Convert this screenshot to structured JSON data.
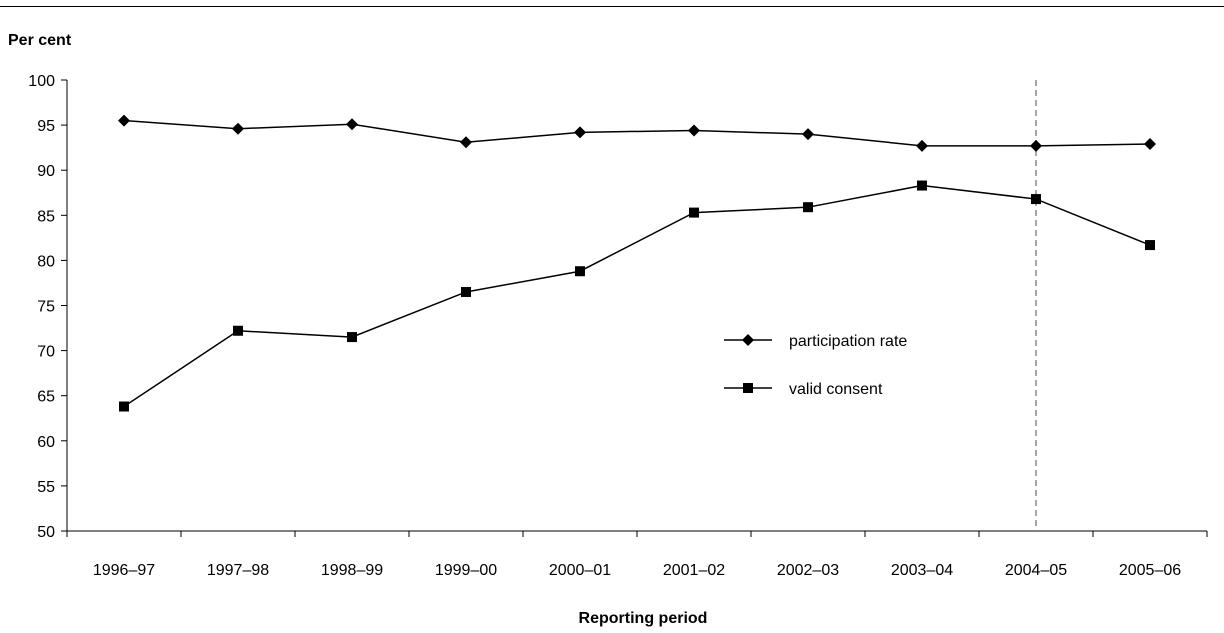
{
  "chart_data": {
    "type": "line",
    "title": "",
    "xlabel": "Reporting period",
    "ylabel": "Per cent",
    "categories": [
      "1996–97",
      "1997–98",
      "1998–99",
      "1999–00",
      "2000–01",
      "2001–02",
      "2002–03",
      "2003–04",
      "2004–05",
      "2005–06"
    ],
    "ylim": [
      50,
      100
    ],
    "yticks": [
      50,
      55,
      60,
      65,
      70,
      75,
      80,
      85,
      90,
      95,
      100
    ],
    "grid": false,
    "legend_position": "center-right",
    "reference_line": {
      "category": "2004–05",
      "style": "dashed",
      "color": "#888888"
    },
    "series": [
      {
        "name": "participation rate",
        "marker": "diamond",
        "values": [
          95.5,
          94.6,
          95.1,
          93.1,
          94.2,
          94.4,
          94.0,
          92.7,
          92.7,
          92.9
        ]
      },
      {
        "name": "valid consent",
        "marker": "square",
        "values": [
          63.8,
          72.2,
          71.5,
          76.5,
          78.8,
          85.3,
          85.9,
          88.3,
          86.8,
          81.7
        ]
      }
    ],
    "colors": {
      "line": "#000000",
      "reference": "#888888"
    }
  }
}
